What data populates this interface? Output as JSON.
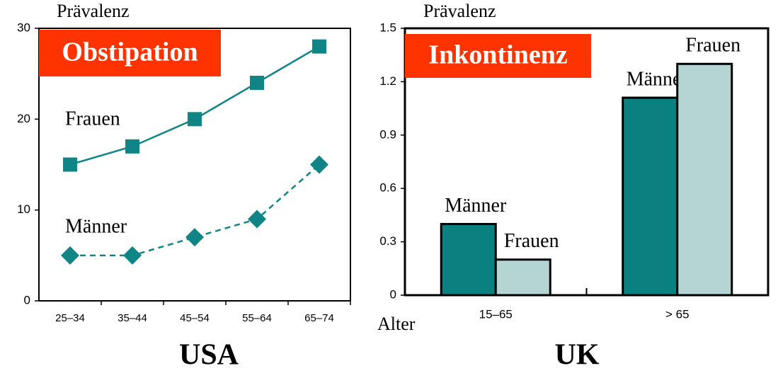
{
  "chart_data": [
    {
      "type": "line",
      "title": "Obstipation",
      "y_label": "Prävalenz",
      "caption": "USA",
      "categories": [
        "25–34",
        "35–44",
        "45–54",
        "55–64",
        "65–74"
      ],
      "series": [
        {
          "name": "Frauen",
          "color": "#0f8585",
          "values": [
            15,
            17,
            20,
            24,
            28
          ],
          "marker": "square",
          "dashed": false
        },
        {
          "name": "Männer",
          "color": "#0f8585",
          "values": [
            5,
            5,
            7,
            9,
            15
          ],
          "marker": "diamond",
          "dashed": true
        }
      ],
      "ylim": [
        0,
        30
      ],
      "yticks": [
        0,
        10,
        20,
        30
      ],
      "title_color": "#ff3300"
    },
    {
      "type": "bar",
      "title": "Inkontinenz",
      "y_label": "Prävalenz",
      "x_label": "Alter",
      "caption": "UK",
      "categories": [
        "15–65",
        "> 65"
      ],
      "series": [
        {
          "name": "Männer",
          "color": "#0a8080",
          "values": [
            0.4,
            1.11
          ]
        },
        {
          "name": "Frauen",
          "color": "#b5d5d5",
          "values": [
            0.2,
            1.3
          ]
        }
      ],
      "ylim": [
        0,
        1.5
      ],
      "yticks": [
        0,
        0.3,
        0.6,
        0.9,
        1.2,
        1.5
      ],
      "title_color": "#ff3300"
    }
  ]
}
